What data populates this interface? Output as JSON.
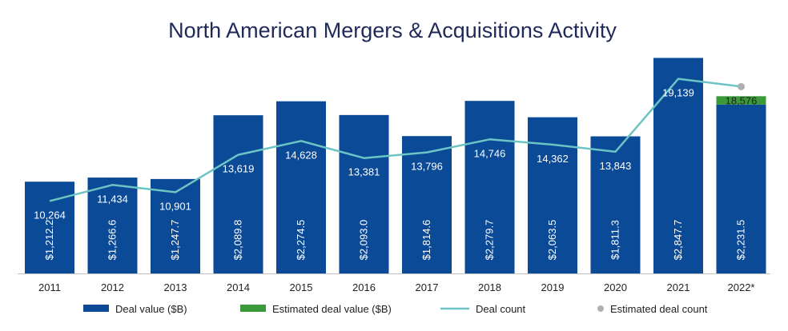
{
  "chart_data": {
    "type": "bar",
    "title": "North American Mergers & Acquisitions Activity",
    "xlabel": "",
    "ylabel": "",
    "categories": [
      "2011",
      "2012",
      "2013",
      "2014",
      "2015",
      "2016",
      "2017",
      "2018",
      "2019",
      "2020",
      "2021",
      "2022*"
    ],
    "series": [
      {
        "name": "Deal value ($B)",
        "type": "bar",
        "color": "#0b4a96",
        "values": [
          1212.2,
          1266.6,
          1247.7,
          2089.8,
          2274.5,
          2093.0,
          1814.6,
          2279.7,
          2063.5,
          1811.3,
          2847.7,
          2231.5
        ],
        "labels": [
          "$1,212.2",
          "$1,266.6",
          "$1,247.7",
          "$2,089.8",
          "$2,274.5",
          "$2,093.0",
          "$1,814.6",
          "$2,279.7",
          "$2,063.5",
          "$1,811.3",
          "$2,847.7",
          "$2,231.5"
        ]
      },
      {
        "name": "Estimated deal value ($B)",
        "type": "bar-stacked",
        "color": "#3a9a3a",
        "values": [
          null,
          null,
          null,
          null,
          null,
          null,
          null,
          null,
          null,
          null,
          null,
          110
        ]
      },
      {
        "name": "Deal count",
        "type": "line",
        "color": "#6cc4c4",
        "values": [
          10264,
          11434,
          10901,
          13619,
          14628,
          13381,
          13796,
          14746,
          14362,
          13843,
          19139,
          18576
        ],
        "labels": [
          "10,264",
          "11,434",
          "10,901",
          "13,619",
          "14,628",
          "13,381",
          "13,796",
          "14,746",
          "14,362",
          "13,843",
          "19,139",
          "18,576"
        ]
      },
      {
        "name": "Estimated deal count",
        "type": "marker",
        "color": "#b0b0b0",
        "values": [
          null,
          null,
          null,
          null,
          null,
          null,
          null,
          null,
          null,
          null,
          null,
          18576
        ]
      }
    ],
    "value_ylim": [
      0,
      3000
    ],
    "count_ylim": [
      5000,
      21500
    ],
    "legend_position": "bottom",
    "grid": false
  }
}
